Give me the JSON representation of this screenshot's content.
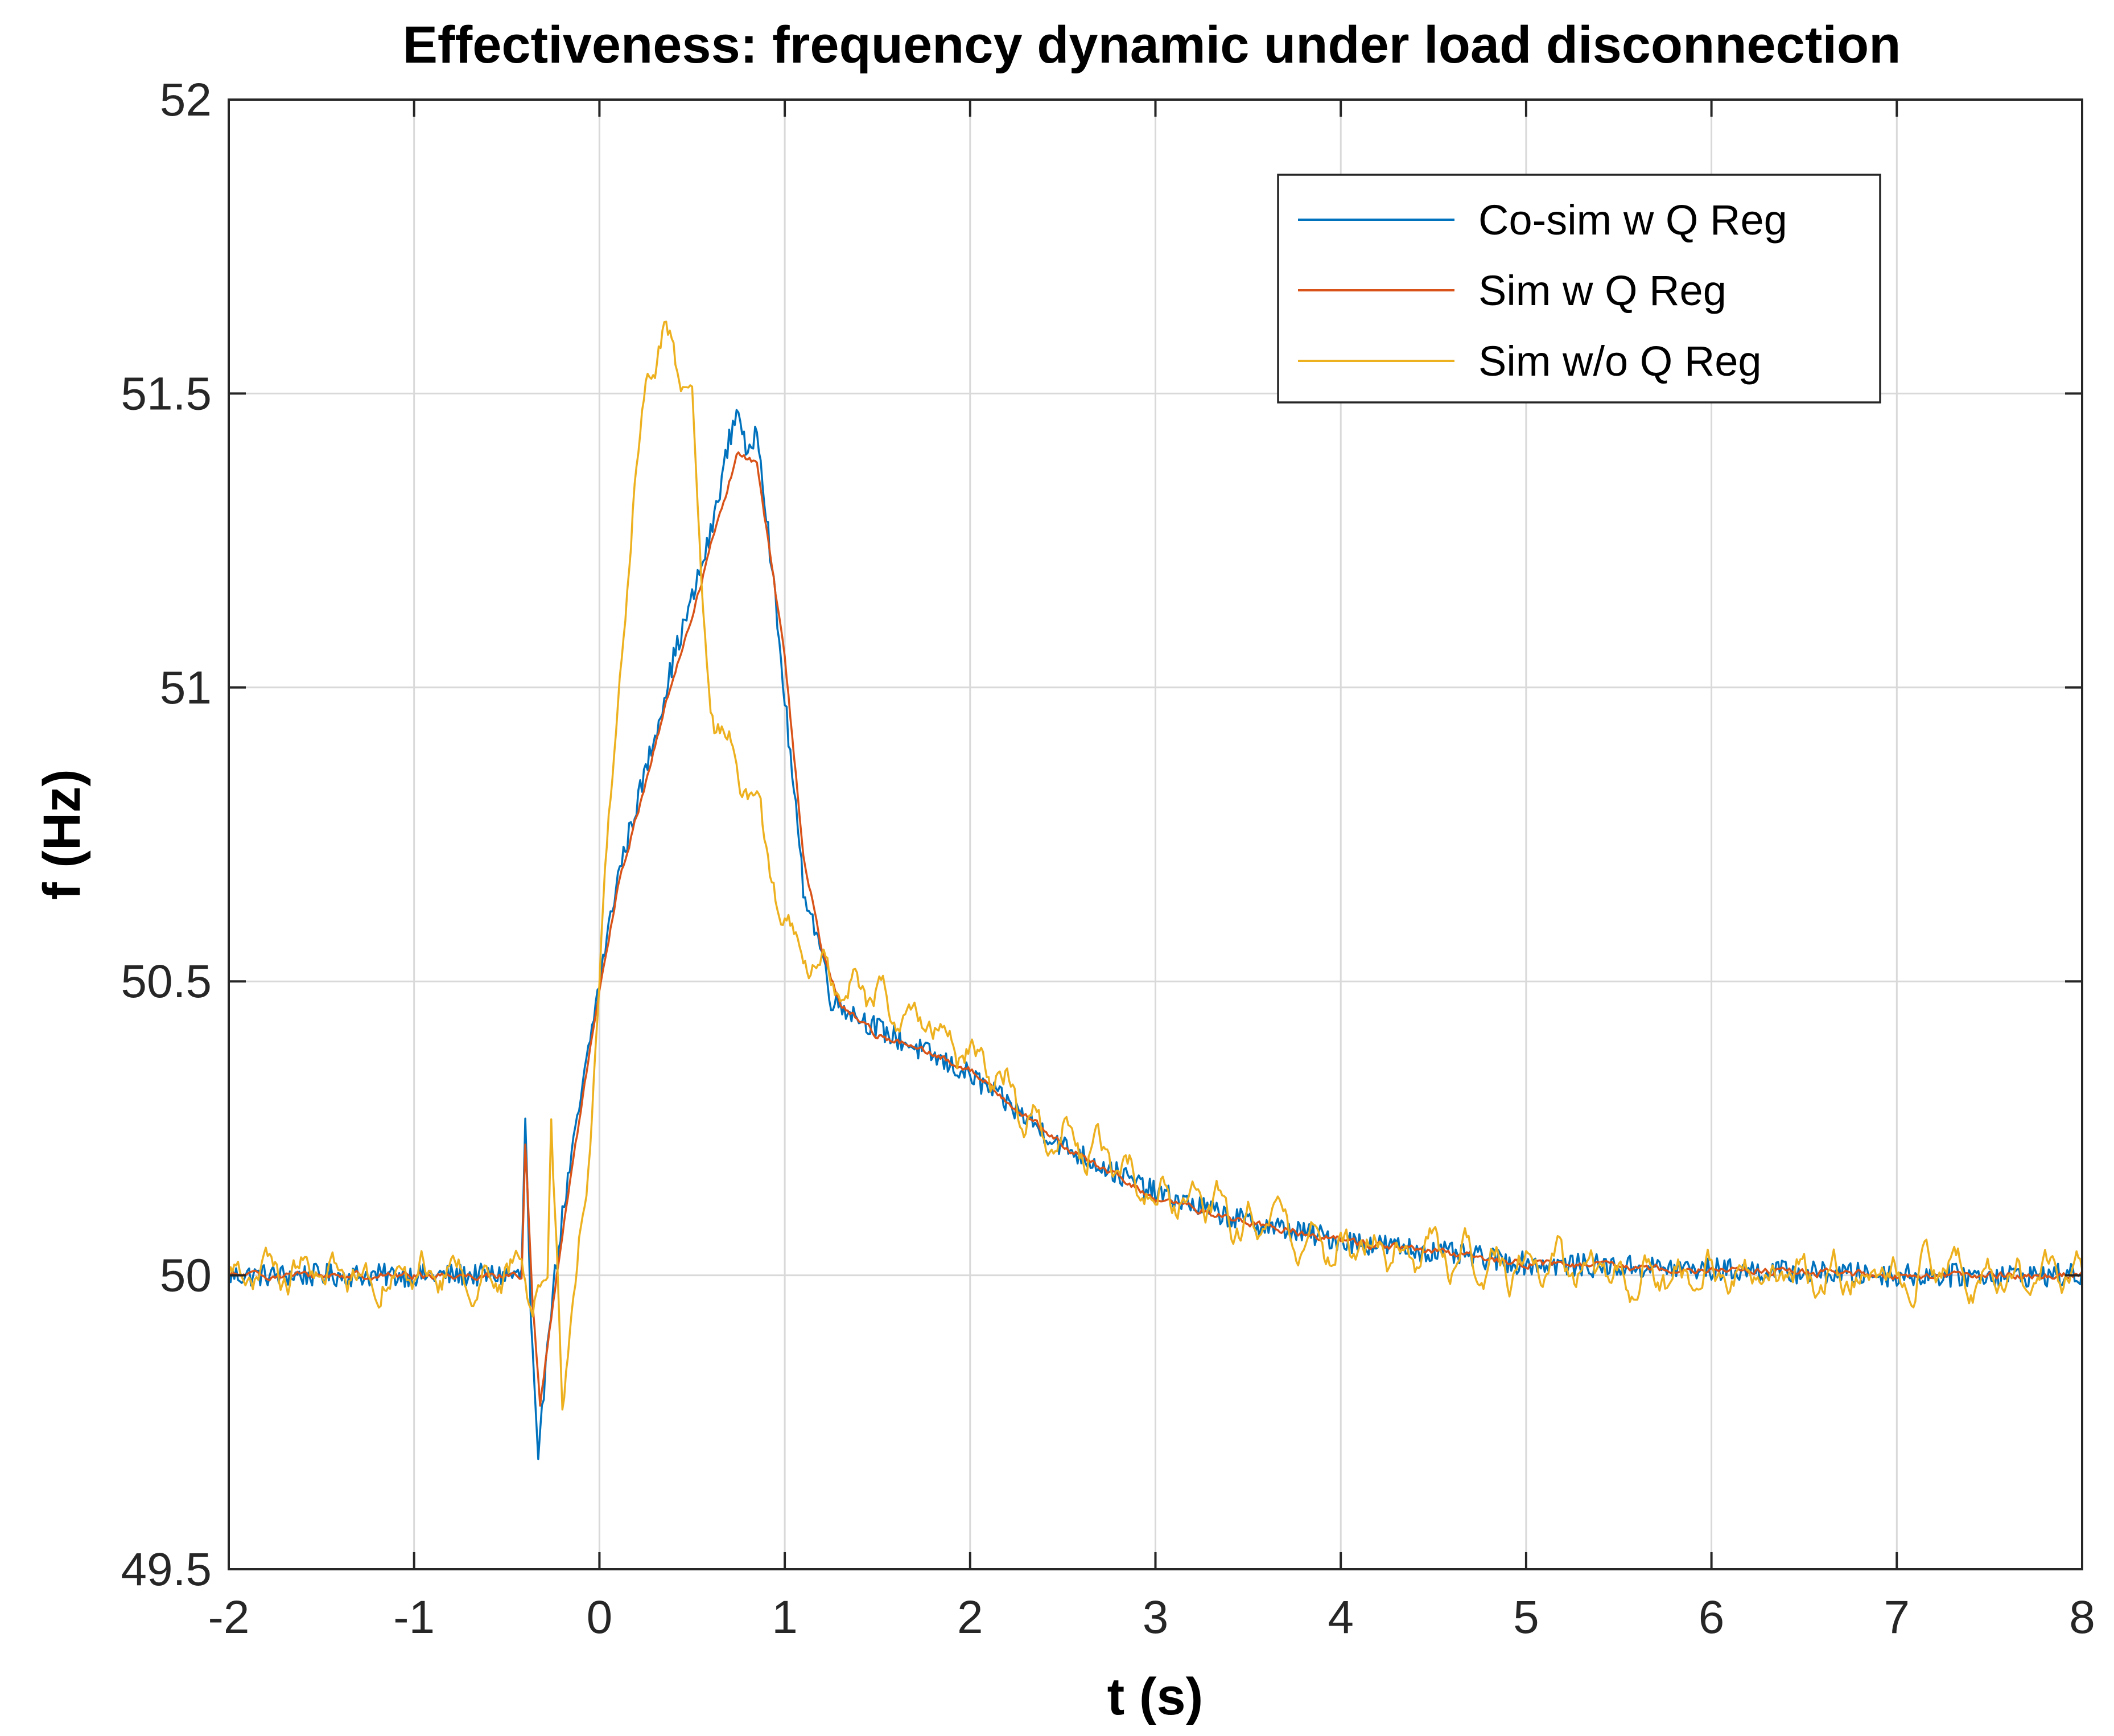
{
  "chart_data": {
    "type": "line",
    "title": "Effectiveness: frequency dynamic under load disconnection",
    "xlabel": "t (s)",
    "ylabel": "f (Hz)",
    "xlim": [
      -2,
      8
    ],
    "ylim": [
      49.5,
      52
    ],
    "xticks": [
      -2,
      -1,
      0,
      1,
      2,
      3,
      4,
      5,
      6,
      7,
      8
    ],
    "yticks": [
      49.5,
      50,
      50.5,
      51,
      51.5,
      52
    ],
    "xtick_labels": [
      "-2",
      "-1",
      "0",
      "1",
      "2",
      "3",
      "4",
      "5",
      "6",
      "7",
      "8"
    ],
    "ytick_labels": [
      "49.5",
      "50",
      "50.5",
      "51",
      "51.5",
      "52"
    ],
    "grid": true,
    "legend_position": "top-right",
    "series": [
      {
        "name": "Co-sim w Q Reg",
        "color": "#0072bd",
        "noise": 0.022,
        "points": [
          [
            -2,
            50.0
          ],
          [
            -0.42,
            50.0
          ],
          [
            -0.4,
            50.27
          ],
          [
            -0.37,
            49.92
          ],
          [
            -0.33,
            49.67
          ],
          [
            -0.28,
            49.9
          ],
          [
            -0.2,
            50.1
          ],
          [
            -0.1,
            50.3
          ],
          [
            0.0,
            50.5
          ],
          [
            0.1,
            50.68
          ],
          [
            0.2,
            50.8
          ],
          [
            0.3,
            50.92
          ],
          [
            0.4,
            51.05
          ],
          [
            0.5,
            51.15
          ],
          [
            0.6,
            51.26
          ],
          [
            0.7,
            51.42
          ],
          [
            0.75,
            51.48
          ],
          [
            0.8,
            51.38
          ],
          [
            0.85,
            51.45
          ],
          [
            0.9,
            51.3
          ],
          [
            1.0,
            50.98
          ],
          [
            1.1,
            50.66
          ],
          [
            1.2,
            50.55
          ],
          [
            1.25,
            50.47
          ],
          [
            1.5,
            50.42
          ],
          [
            2.0,
            50.34
          ],
          [
            2.5,
            50.22
          ],
          [
            3.0,
            50.14
          ],
          [
            3.5,
            50.09
          ],
          [
            4.0,
            50.06
          ],
          [
            4.5,
            50.04
          ],
          [
            5.0,
            50.02
          ],
          [
            6.0,
            50.01
          ],
          [
            7.0,
            50.0
          ],
          [
            8.0,
            50.0
          ]
        ]
      },
      {
        "name": "Sim w Q Reg",
        "color": "#d95319",
        "noise": 0.012,
        "points": [
          [
            -2,
            50.0
          ],
          [
            -0.42,
            50.0
          ],
          [
            -0.4,
            50.22
          ],
          [
            -0.36,
            49.95
          ],
          [
            -0.32,
            49.78
          ],
          [
            -0.25,
            49.95
          ],
          [
            -0.15,
            50.18
          ],
          [
            0.0,
            50.48
          ],
          [
            0.1,
            50.66
          ],
          [
            0.2,
            50.78
          ],
          [
            0.3,
            50.9
          ],
          [
            0.4,
            51.02
          ],
          [
            0.5,
            51.12
          ],
          [
            0.6,
            51.24
          ],
          [
            0.7,
            51.35
          ],
          [
            0.75,
            51.4
          ],
          [
            0.85,
            51.38
          ],
          [
            1.0,
            51.05
          ],
          [
            1.1,
            50.72
          ],
          [
            1.2,
            50.55
          ],
          [
            1.3,
            50.46
          ],
          [
            1.5,
            50.41
          ],
          [
            2.0,
            50.35
          ],
          [
            2.5,
            50.22
          ],
          [
            3.0,
            50.13
          ],
          [
            3.5,
            50.09
          ],
          [
            4.0,
            50.06
          ],
          [
            4.5,
            50.04
          ],
          [
            5.0,
            50.02
          ],
          [
            6.0,
            50.01
          ],
          [
            7.0,
            50.0
          ],
          [
            8.0,
            50.0
          ]
        ]
      },
      {
        "name": "Sim w/o Q Reg",
        "color": "#edb120",
        "noise": 0.045,
        "points": [
          [
            -2,
            50.0
          ],
          [
            -0.5,
            50.0
          ],
          [
            -0.35,
            49.98
          ],
          [
            -0.28,
            49.97
          ],
          [
            -0.26,
            50.25
          ],
          [
            -0.23,
            50.05
          ],
          [
            -0.2,
            49.82
          ],
          [
            -0.15,
            49.9
          ],
          [
            -0.05,
            50.25
          ],
          [
            0.0,
            50.5
          ],
          [
            0.1,
            51.0
          ],
          [
            0.2,
            51.35
          ],
          [
            0.25,
            51.52
          ],
          [
            0.35,
            51.6
          ],
          [
            0.45,
            51.52
          ],
          [
            0.5,
            51.46
          ],
          [
            0.55,
            51.15
          ],
          [
            0.6,
            50.95
          ],
          [
            0.7,
            50.9
          ],
          [
            0.8,
            50.85
          ],
          [
            0.9,
            50.7
          ],
          [
            1.0,
            50.62
          ],
          [
            1.05,
            50.55
          ],
          [
            1.3,
            50.5
          ],
          [
            1.5,
            50.47
          ],
          [
            2.0,
            50.38
          ],
          [
            2.2,
            50.32
          ],
          [
            2.3,
            50.27
          ],
          [
            2.5,
            50.24
          ],
          [
            3.0,
            50.14
          ],
          [
            3.5,
            50.09
          ],
          [
            4.0,
            50.05
          ],
          [
            5.0,
            50.02
          ],
          [
            6.0,
            50.0
          ],
          [
            7.0,
            50.0
          ],
          [
            8.0,
            50.0
          ]
        ]
      }
    ]
  }
}
